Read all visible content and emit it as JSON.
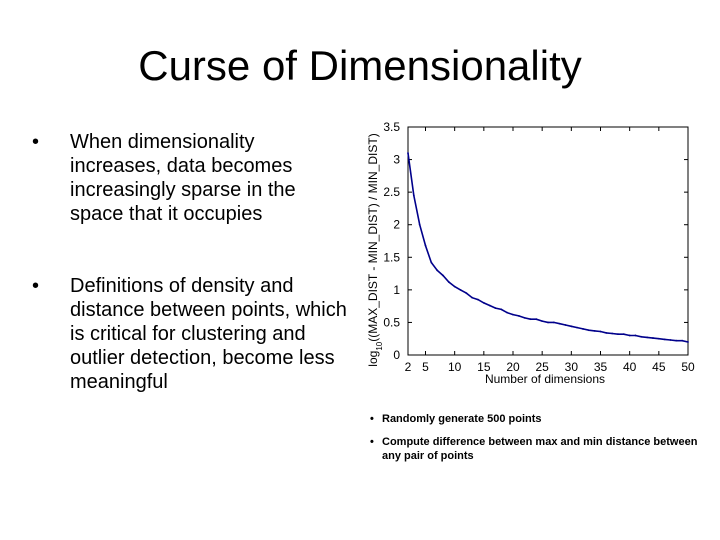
{
  "slide": {
    "title": "Curse of Dimensionality",
    "bullet_symbol": "•",
    "bullets": [
      "When dimensionality increases, data becomes increasingly sparse in the space that it occupies",
      "Definitions of density and distance between points, which is critical for clustering and outlier detection, become less meaningful"
    ]
  },
  "notes": {
    "bullet_symbol": "•",
    "items": [
      "Randomly generate 500 points",
      "Compute difference between max and min distance between any pair of points"
    ]
  },
  "chart_data": {
    "type": "line",
    "xlabel": "Number of dimensions",
    "ylabel_base": "log",
    "ylabel_sub": "10",
    "ylabel_rest": "((MAX_DIST - MIN_DIST) / MIN_DIST)",
    "xlim": [
      2,
      50
    ],
    "ylim": [
      0,
      3.5
    ],
    "xticks": [
      2,
      5,
      10,
      15,
      20,
      25,
      30,
      35,
      40,
      45,
      50
    ],
    "yticks": [
      0,
      0.5,
      1,
      1.5,
      2,
      2.5,
      3,
      3.5
    ],
    "grid": false,
    "line_color": "#00008B",
    "series": [
      {
        "x": [
          2,
          3,
          4,
          5,
          6,
          7,
          8,
          9,
          10,
          11,
          12,
          13,
          14,
          15,
          16,
          17,
          18,
          19,
          20,
          21,
          22,
          23,
          24,
          25,
          26,
          27,
          28,
          29,
          30,
          31,
          32,
          33,
          34,
          35,
          36,
          37,
          38,
          39,
          40,
          41,
          42,
          43,
          44,
          45,
          46,
          47,
          48,
          49,
          50
        ],
        "values": [
          3.1,
          2.45,
          2.0,
          1.68,
          1.42,
          1.3,
          1.22,
          1.12,
          1.05,
          1.0,
          0.95,
          0.88,
          0.85,
          0.8,
          0.76,
          0.72,
          0.7,
          0.65,
          0.62,
          0.6,
          0.57,
          0.55,
          0.55,
          0.52,
          0.5,
          0.5,
          0.48,
          0.46,
          0.44,
          0.42,
          0.4,
          0.38,
          0.37,
          0.36,
          0.34,
          0.33,
          0.32,
          0.32,
          0.3,
          0.3,
          0.28,
          0.27,
          0.26,
          0.25,
          0.24,
          0.23,
          0.22,
          0.22,
          0.2
        ]
      }
    ]
  }
}
